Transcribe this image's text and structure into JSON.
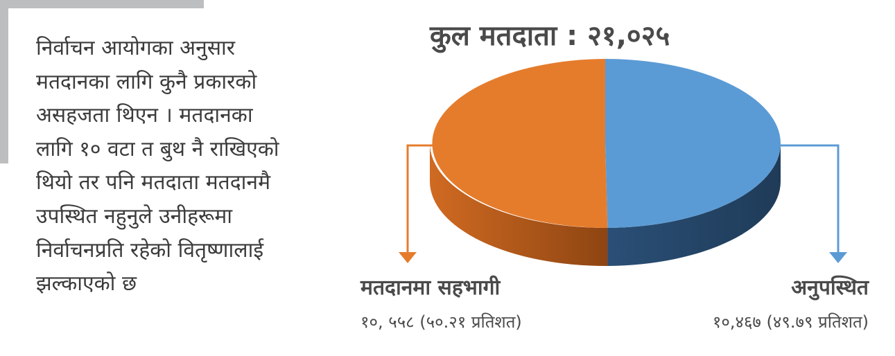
{
  "paragraph": {
    "lines": [
      "निर्वाचन आयोगका अनुसार",
      "मतदानका लागि कुनै प्रकारको",
      "असहजता थिएन । मतदानका",
      "लागि १० वटा त बुथ नै राखिएको",
      "थियो तर पनि मतदाता मतदानमै",
      "उपस्थित नहुनुले उनीहरूमा",
      "निर्वाचनप्रति रहेको वितृष्णालाई",
      "झल्काएको छ"
    ]
  },
  "chart_data": {
    "type": "pie",
    "title": "कुल मतदाता : २१,०२५",
    "total": 21025,
    "slices": [
      {
        "label": "मतदानमा सहभागी",
        "value": 10558,
        "percent": 50.21,
        "value_text": "१०, ५५८ (५०.२१ प्रतिशत)",
        "color": "#e57c2c",
        "side_color": "#b65a18"
      },
      {
        "label": "अनुपस्थित",
        "value": 10467,
        "percent": 49.79,
        "value_text": "१०,४६७ (४९.७९ प्रतिशत)",
        "color": "#5b9bd5",
        "side_color": "#2f5a86"
      }
    ]
  },
  "colors": {
    "frame": "#bcbec0",
    "text": "#3b3b3b",
    "orange": "#e57c2c",
    "blue": "#5b9bd5"
  }
}
